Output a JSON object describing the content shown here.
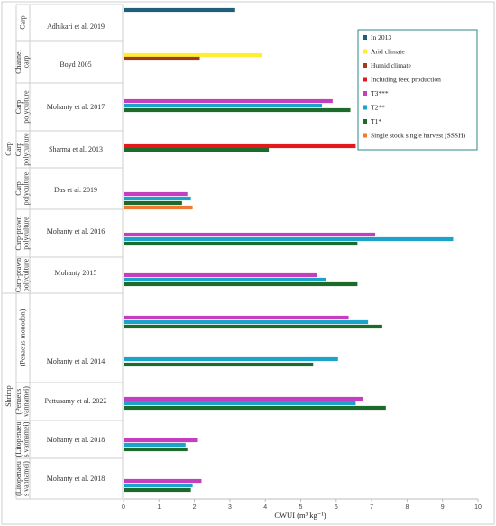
{
  "chart_data": {
    "type": "bar",
    "orientation": "horizontal",
    "title": "",
    "xlabel": "CWUI (m³ kg⁻¹)",
    "xlim": [
      0,
      10
    ],
    "xticks": [
      "0",
      "1",
      "2",
      "3",
      "4",
      "5",
      "6",
      "7",
      "8",
      "9",
      "10"
    ],
    "grid": false,
    "legend_placement": "top-right",
    "legend": [
      {
        "key": "2013",
        "label": "In 2013",
        "color": "#1f5f7a"
      },
      {
        "key": "arid",
        "label": "Arid climate",
        "color": "#ffee33"
      },
      {
        "key": "humid",
        "label": "Humid climate",
        "color": "#a23b1c"
      },
      {
        "key": "feed",
        "label": "Including feed production",
        "color": "#e31a1c"
      },
      {
        "key": "t3",
        "label": "T3***",
        "color": "#c43ec0"
      },
      {
        "key": "t2",
        "label": "T2**",
        "color": "#1ca3c9"
      },
      {
        "key": "t1",
        "label": "T1*",
        "color": "#1c6b2a"
      },
      {
        "key": "sssh",
        "label": "Single stock single harvest (SSSH)",
        "color": "#f07a33"
      }
    ],
    "groups": [
      {
        "name": "Carp",
        "subgroups": [
          {
            "name": "Carp",
            "studies": [
              {
                "label": "Adhikari et al. 2019",
                "bars": [
                  {
                    "key": "2013",
                    "value": 3.15
                  }
                ]
              }
            ]
          },
          {
            "name": "Channel carp",
            "studies": [
              {
                "label": "Boyd 2005",
                "bars": [
                  {
                    "key": "arid",
                    "value": 3.9
                  },
                  {
                    "key": "humid",
                    "value": 2.15
                  }
                ]
              }
            ]
          },
          {
            "name": "Carp polyculture",
            "studies": [
              {
                "label": "Mohanty et al. 2017",
                "bars": [
                  {
                    "key": "t3",
                    "value": 5.9
                  },
                  {
                    "key": "t2",
                    "value": 5.6
                  },
                  {
                    "key": "t1",
                    "value": 6.4
                  }
                ]
              }
            ]
          },
          {
            "name": "Carp polyculture",
            "studies": [
              {
                "label": "Sharma et al. 2013",
                "bars": [
                  {
                    "key": "feed",
                    "value": 6.55
                  },
                  {
                    "key": "t1",
                    "value": 4.1
                  }
                ]
              }
            ]
          },
          {
            "name": "Carp polyculture",
            "studies": [
              {
                "label": "Das et al. 2019",
                "bars": [
                  {
                    "key": "t3",
                    "value": 1.8
                  },
                  {
                    "key": "t2",
                    "value": 1.9
                  },
                  {
                    "key": "t1",
                    "value": 1.65
                  },
                  {
                    "key": "sssh",
                    "value": 1.95
                  }
                ]
              }
            ]
          },
          {
            "name": "Carp-prawn polyculture",
            "studies": [
              {
                "label": "Mohanty et al. 2016",
                "bars": [
                  {
                    "key": "t3",
                    "value": 7.1
                  },
                  {
                    "key": "t2",
                    "value": 9.3
                  },
                  {
                    "key": "t1",
                    "value": 6.6
                  }
                ]
              }
            ]
          },
          {
            "name": "Carp-prawn polyculture",
            "studies": [
              {
                "label": "Mohanty 2015",
                "bars": [
                  {
                    "key": "t3",
                    "value": 5.45
                  },
                  {
                    "key": "t2",
                    "value": 5.7
                  },
                  {
                    "key": "t1",
                    "value": 6.6
                  }
                ]
              }
            ]
          }
        ]
      },
      {
        "name": "Shrimp",
        "subgroups": [
          {
            "name": "(Penaeus monodon)",
            "studies": [
              {
                "label": "",
                "bars": [
                  {
                    "key": "t3",
                    "value": 6.35
                  },
                  {
                    "key": "t2",
                    "value": 6.9
                  },
                  {
                    "key": "t1",
                    "value": 7.3
                  }
                ]
              },
              {
                "label": "Mohanty et al. 2014",
                "bars": [
                  {
                    "key": "t2",
                    "value": 6.05
                  },
                  {
                    "key": "t1",
                    "value": 5.35
                  }
                ]
              }
            ]
          },
          {
            "name": "(Penaeus vannamei)",
            "studies": [
              {
                "label": "Pattusamy et al. 2022",
                "bars": [
                  {
                    "key": "t3",
                    "value": 6.75
                  },
                  {
                    "key": "t2",
                    "value": 6.55
                  },
                  {
                    "key": "t1",
                    "value": 7.4
                  }
                ]
              }
            ]
          },
          {
            "name": "(Litopenaeu s vannamei)",
            "studies": [
              {
                "label": "Mohanty et al. 2018",
                "bars": [
                  {
                    "key": "t3",
                    "value": 2.1
                  },
                  {
                    "key": "t2",
                    "value": 1.75
                  },
                  {
                    "key": "t1",
                    "value": 1.8
                  }
                ]
              }
            ]
          },
          {
            "name": "(Litopenaeu s vannamei)",
            "studies": [
              {
                "label": "Mohanty et al. 2018",
                "bars": [
                  {
                    "key": "t3",
                    "value": 2.2
                  },
                  {
                    "key": "t2",
                    "value": 1.95
                  },
                  {
                    "key": "t1",
                    "value": 1.9
                  }
                ]
              }
            ]
          }
        ]
      }
    ]
  }
}
